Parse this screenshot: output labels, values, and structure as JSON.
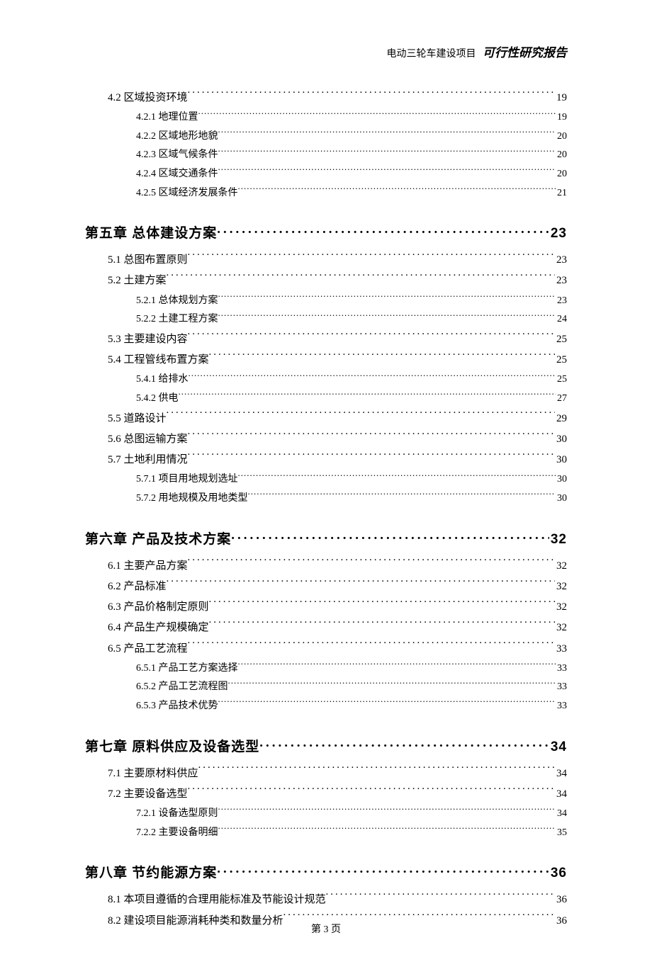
{
  "header": {
    "project": "电动三轮车建设项目",
    "report_title": "可行性研究报告"
  },
  "footer": {
    "page_label": "第 3 页"
  },
  "toc": [
    {
      "level": "h2",
      "num": "4.2",
      "title": "区域投资环境",
      "page": "19"
    },
    {
      "level": "h3",
      "num": "4.2.1",
      "title": "地理位置",
      "page": "19"
    },
    {
      "level": "h3",
      "num": "4.2.2",
      "title": "区域地形地貌",
      "page": "20"
    },
    {
      "level": "h3",
      "num": "4.2.3",
      "title": "区域气候条件",
      "page": "20"
    },
    {
      "level": "h3",
      "num": "4.2.4",
      "title": "区域交通条件",
      "page": "20"
    },
    {
      "level": "h3",
      "num": "4.2.5",
      "title": "区域经济发展条件",
      "page": "21"
    },
    {
      "level": "h1",
      "num": "第五章",
      "title": "总体建设方案",
      "page": "23"
    },
    {
      "level": "h2",
      "num": "5.1",
      "title": "总图布置原则",
      "page": "23"
    },
    {
      "level": "h2",
      "num": "5.2",
      "title": "土建方案",
      "page": "23"
    },
    {
      "level": "h3",
      "num": "5.2.1",
      "title": "总体规划方案",
      "page": "23"
    },
    {
      "level": "h3",
      "num": "5.2.2",
      "title": "土建工程方案",
      "page": "24"
    },
    {
      "level": "h2",
      "num": "5.3",
      "title": "主要建设内容",
      "page": "25"
    },
    {
      "level": "h2",
      "num": "5.4",
      "title": "工程管线布置方案",
      "page": "25"
    },
    {
      "level": "h3",
      "num": "5.4.1",
      "title": "给排水",
      "page": "25"
    },
    {
      "level": "h3",
      "num": "5.4.2",
      "title": "供电",
      "page": "27"
    },
    {
      "level": "h2",
      "num": "5.5",
      "title": "道路设计",
      "page": "29"
    },
    {
      "level": "h2",
      "num": "5.6",
      "title": "总图运输方案",
      "page": "30"
    },
    {
      "level": "h2",
      "num": "5.7",
      "title": "土地利用情况",
      "page": "30"
    },
    {
      "level": "h3",
      "num": "5.7.1",
      "title": "项目用地规划选址",
      "page": "30"
    },
    {
      "level": "h3",
      "num": "5.7.2",
      "title": "用地规模及用地类型",
      "page": "30"
    },
    {
      "level": "h1",
      "num": "第六章",
      "title": "产品及技术方案",
      "page": "32"
    },
    {
      "level": "h2",
      "num": "6.1",
      "title": "主要产品方案",
      "page": "32"
    },
    {
      "level": "h2",
      "num": "6.2",
      "title": "产品标准",
      "page": "32"
    },
    {
      "level": "h2",
      "num": "6.3",
      "title": "产品价格制定原则",
      "page": "32"
    },
    {
      "level": "h2",
      "num": "6.4",
      "title": "产品生产规模确定",
      "page": "32"
    },
    {
      "level": "h2",
      "num": "6.5",
      "title": "产品工艺流程",
      "page": "33"
    },
    {
      "level": "h3",
      "num": "6.5.1",
      "title": "产品工艺方案选择",
      "page": "33"
    },
    {
      "level": "h3",
      "num": "6.5.2",
      "title": "产品工艺流程图",
      "page": "33"
    },
    {
      "level": "h3",
      "num": "6.5.3",
      "title": "产品技术优势",
      "page": "33"
    },
    {
      "level": "h1",
      "num": "第七章",
      "title": "原料供应及设备选型",
      "page": "34"
    },
    {
      "level": "h2",
      "num": "7.1",
      "title": "主要原材料供应",
      "page": "34"
    },
    {
      "level": "h2",
      "num": "7.2",
      "title": "主要设备选型",
      "page": "34"
    },
    {
      "level": "h3",
      "num": "7.2.1",
      "title": "设备选型原则",
      "page": "34"
    },
    {
      "level": "h3",
      "num": "7.2.2",
      "title": "主要设备明细",
      "page": "35"
    },
    {
      "level": "h1",
      "num": "第八章",
      "title": "节约能源方案",
      "page": "36"
    },
    {
      "level": "h2",
      "num": "8.1",
      "title": "本项目遵循的合理用能标准及节能设计规范",
      "page": "36"
    },
    {
      "level": "h2",
      "num": "8.2",
      "title": "建设项目能源消耗种类和数量分析",
      "page": "36"
    }
  ]
}
